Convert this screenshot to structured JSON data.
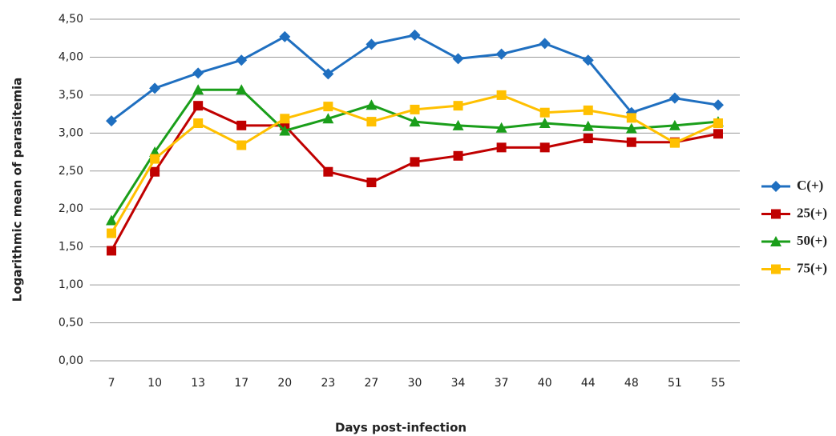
{
  "chart_data": {
    "type": "line",
    "y_label": "Logarithmic mean of parasitemia",
    "x_label": "Days post-infection",
    "categories": [
      "7",
      "10",
      "13",
      "17",
      "20",
      "23",
      "27",
      "30",
      "34",
      "37",
      "40",
      "44",
      "48",
      "51",
      "55"
    ],
    "series": [
      {
        "name": "C(+)",
        "color": "#1f6fc0",
        "marker": "diamond",
        "values": [
          3.16,
          3.59,
          3.79,
          3.96,
          4.27,
          3.78,
          4.17,
          4.29,
          3.98,
          4.04,
          4.18,
          3.96,
          3.27,
          3.46,
          3.37
        ]
      },
      {
        "name": "25(+)",
        "color": "#c00000",
        "marker": "square",
        "values": [
          1.45,
          2.49,
          3.36,
          3.1,
          3.1,
          2.49,
          2.35,
          2.62,
          2.7,
          2.81,
          2.81,
          2.93,
          2.88,
          2.88,
          2.99
        ]
      },
      {
        "name": "50(+)",
        "color": "#1a9e1a",
        "marker": "triangle",
        "values": [
          1.85,
          2.75,
          3.57,
          3.57,
          3.03,
          3.19,
          3.37,
          3.15,
          3.1,
          3.07,
          3.13,
          3.09,
          3.06,
          3.1,
          3.15
        ]
      },
      {
        "name": "75(+)",
        "color": "#ffc000",
        "marker": "square",
        "values": [
          1.68,
          2.66,
          3.13,
          2.84,
          3.19,
          3.35,
          3.15,
          3.31,
          3.36,
          3.5,
          3.27,
          3.3,
          3.2,
          2.87,
          3.13
        ]
      }
    ],
    "ylim": [
      0,
      4.5
    ],
    "yticks": [
      {
        "value": 0,
        "label": "0,00"
      },
      {
        "value": 0.5,
        "label": "0,50"
      },
      {
        "value": 1,
        "label": "1,00"
      },
      {
        "value": 1.5,
        "label": "1,50"
      },
      {
        "value": 2,
        "label": "2,00"
      },
      {
        "value": 2.5,
        "label": "2,50"
      },
      {
        "value": 3,
        "label": "3,00"
      },
      {
        "value": 3.5,
        "label": "3,50"
      },
      {
        "value": 4,
        "label": "4,00"
      },
      {
        "value": 4.5,
        "label": "4,50"
      }
    ],
    "grid": true,
    "legend": "right"
  }
}
